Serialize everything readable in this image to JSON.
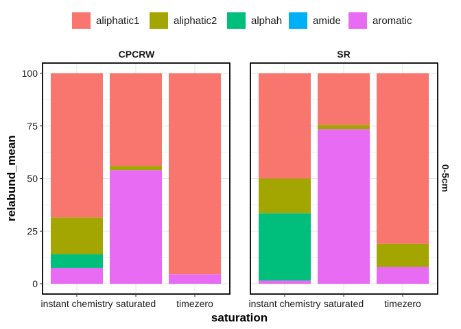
{
  "chart_data": {
    "type": "bar",
    "stacked": true,
    "xlabel": "saturation",
    "ylabel": "relabund_mean",
    "ylim": [
      0,
      100
    ],
    "yticks": [
      0,
      25,
      50,
      75,
      100
    ],
    "grid": true,
    "legend_position": "top",
    "row_facet": "0-5cm",
    "categories": [
      "instant chemistry",
      "saturated",
      "timezero"
    ],
    "legend": [
      {
        "name": "aliphatic1",
        "color": "#F8766D"
      },
      {
        "name": "aliphatic2",
        "color": "#A3A500"
      },
      {
        "name": "alphah",
        "color": "#00BF7D"
      },
      {
        "name": "amide",
        "color": "#00B0F6"
      },
      {
        "name": "aromatic",
        "color": "#E76BF3"
      }
    ],
    "stack_order": [
      "aromatic",
      "amide",
      "alphah",
      "aliphatic2",
      "aliphatic1"
    ],
    "facets": [
      {
        "title": "CPCRW",
        "series": [
          {
            "name": "aromatic",
            "values": [
              7.5,
              54,
              4.5
            ]
          },
          {
            "name": "amide",
            "values": [
              0,
              0,
              0
            ]
          },
          {
            "name": "alphah",
            "values": [
              6.5,
              0,
              0
            ]
          },
          {
            "name": "aliphatic2",
            "values": [
              17.5,
              2,
              0
            ]
          },
          {
            "name": "aliphatic1",
            "values": [
              68.5,
              44,
              95.5
            ]
          }
        ]
      },
      {
        "title": "SR",
        "series": [
          {
            "name": "aromatic",
            "values": [
              1.5,
              73.5,
              8
            ]
          },
          {
            "name": "amide",
            "values": [
              0,
              0,
              0
            ]
          },
          {
            "name": "alphah",
            "values": [
              32,
              0,
              0
            ]
          },
          {
            "name": "aliphatic2",
            "values": [
              16.5,
              2,
              11
            ]
          },
          {
            "name": "aliphatic1",
            "values": [
              50,
              24.5,
              81
            ]
          }
        ]
      }
    ]
  }
}
